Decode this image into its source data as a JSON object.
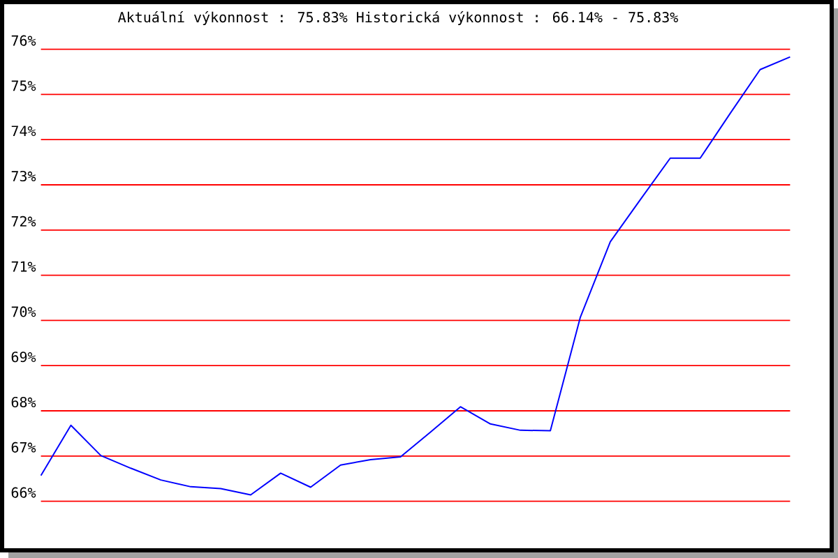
{
  "chart_data": {
    "type": "line",
    "title": "Aktuální výkonnost : 75.83%  Historická výkonnost : 66.14% - 75.83%",
    "categories": [
      null,
      null,
      null,
      null,
      null,
      null,
      null,
      null,
      null,
      null,
      null,
      null,
      null,
      null,
      null,
      null,
      null,
      null,
      null,
      null,
      null,
      null,
      null,
      null,
      null,
      null
    ],
    "series": [
      {
        "color": "#0000ff",
        "values": [
          66.57,
          67.68,
          67.01,
          66.73,
          66.47,
          66.32,
          66.28,
          66.14,
          66.62,
          66.31,
          66.8,
          66.92,
          66.98,
          67.53,
          68.09,
          67.71,
          67.57,
          67.56,
          70.07,
          71.74,
          72.67,
          73.59,
          73.59,
          74.58,
          75.55,
          75.83
        ]
      }
    ],
    "ylim": [
      66,
      76
    ],
    "yticks": [
      {
        "value": 66,
        "label": "66%"
      },
      {
        "value": 67,
        "label": "67%"
      },
      {
        "value": 68,
        "label": "68%"
      },
      {
        "value": 69,
        "label": "69%"
      },
      {
        "value": 70,
        "label": "70%"
      },
      {
        "value": 71,
        "label": "71%"
      },
      {
        "value": 72,
        "label": "72%"
      },
      {
        "value": 73,
        "label": "73%"
      },
      {
        "value": 74,
        "label": "74%"
      },
      {
        "value": 75,
        "label": "75%"
      },
      {
        "value": 76,
        "label": "76%"
      }
    ],
    "grid": "y"
  }
}
